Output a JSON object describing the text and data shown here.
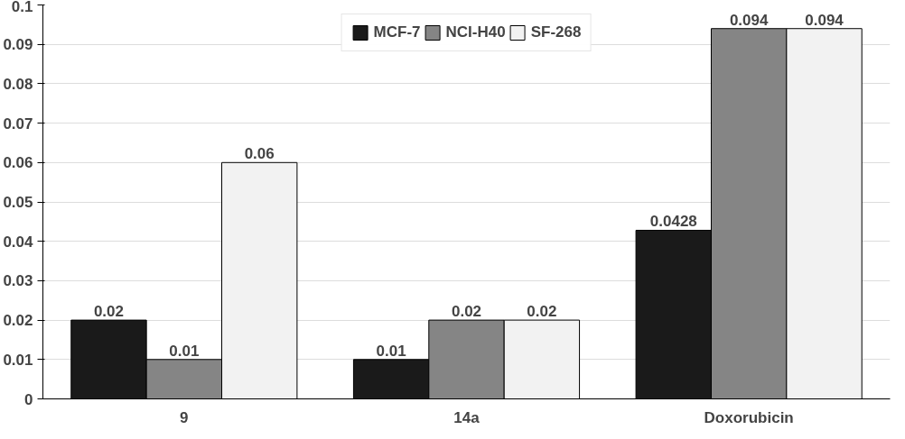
{
  "chart_data": {
    "type": "bar",
    "categories": [
      "9",
      "14a",
      "Doxorubicin"
    ],
    "series": [
      {
        "name": "MCF-7",
        "color": "#1a1a1a",
        "values": [
          0.02,
          0.01,
          0.0428
        ]
      },
      {
        "name": "NCI-H40",
        "color": "#858585",
        "values": [
          0.01,
          0.02,
          0.094
        ]
      },
      {
        "name": "SF-268",
        "color": "#f2f2f2",
        "values": [
          0.06,
          0.02,
          0.094
        ]
      }
    ],
    "ylim": [
      0,
      0.1
    ],
    "yticks": [
      0,
      0.01,
      0.02,
      0.03,
      0.04,
      0.05,
      0.06,
      0.07,
      0.08,
      0.09,
      0.1
    ],
    "grid": "y",
    "legend": "top",
    "data_labels": true
  }
}
